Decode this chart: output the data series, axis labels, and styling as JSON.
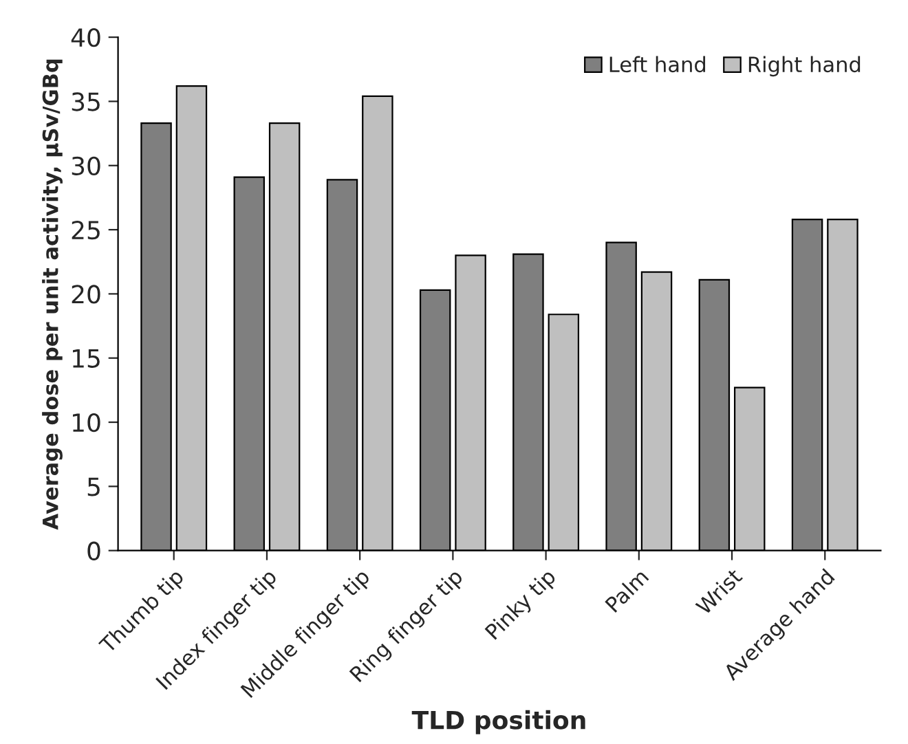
{
  "chart_data": {
    "type": "bar",
    "xlabel": "TLD position",
    "ylabel": "Average dose per unit activity, µSv/GBq",
    "categories": [
      "Thumb tip",
      "Index finger tip",
      "Middle finger tip",
      "Ring finger tip",
      "Pinky tip",
      "Palm",
      "Wrist",
      "Average hand"
    ],
    "series": [
      {
        "name": "Left hand",
        "color": "#7f7f7f",
        "values": [
          33.3,
          29.1,
          28.9,
          20.3,
          23.1,
          24.0,
          21.1,
          25.8
        ]
      },
      {
        "name": "Right hand",
        "color": "#bfbfbf",
        "values": [
          36.2,
          33.3,
          35.4,
          23.0,
          18.4,
          21.7,
          12.7,
          25.8
        ]
      }
    ],
    "ylim": [
      0,
      40
    ],
    "yticks": [
      0,
      5,
      10,
      15,
      20,
      25,
      30,
      35,
      40
    ],
    "grid": false,
    "legend": "top right"
  }
}
